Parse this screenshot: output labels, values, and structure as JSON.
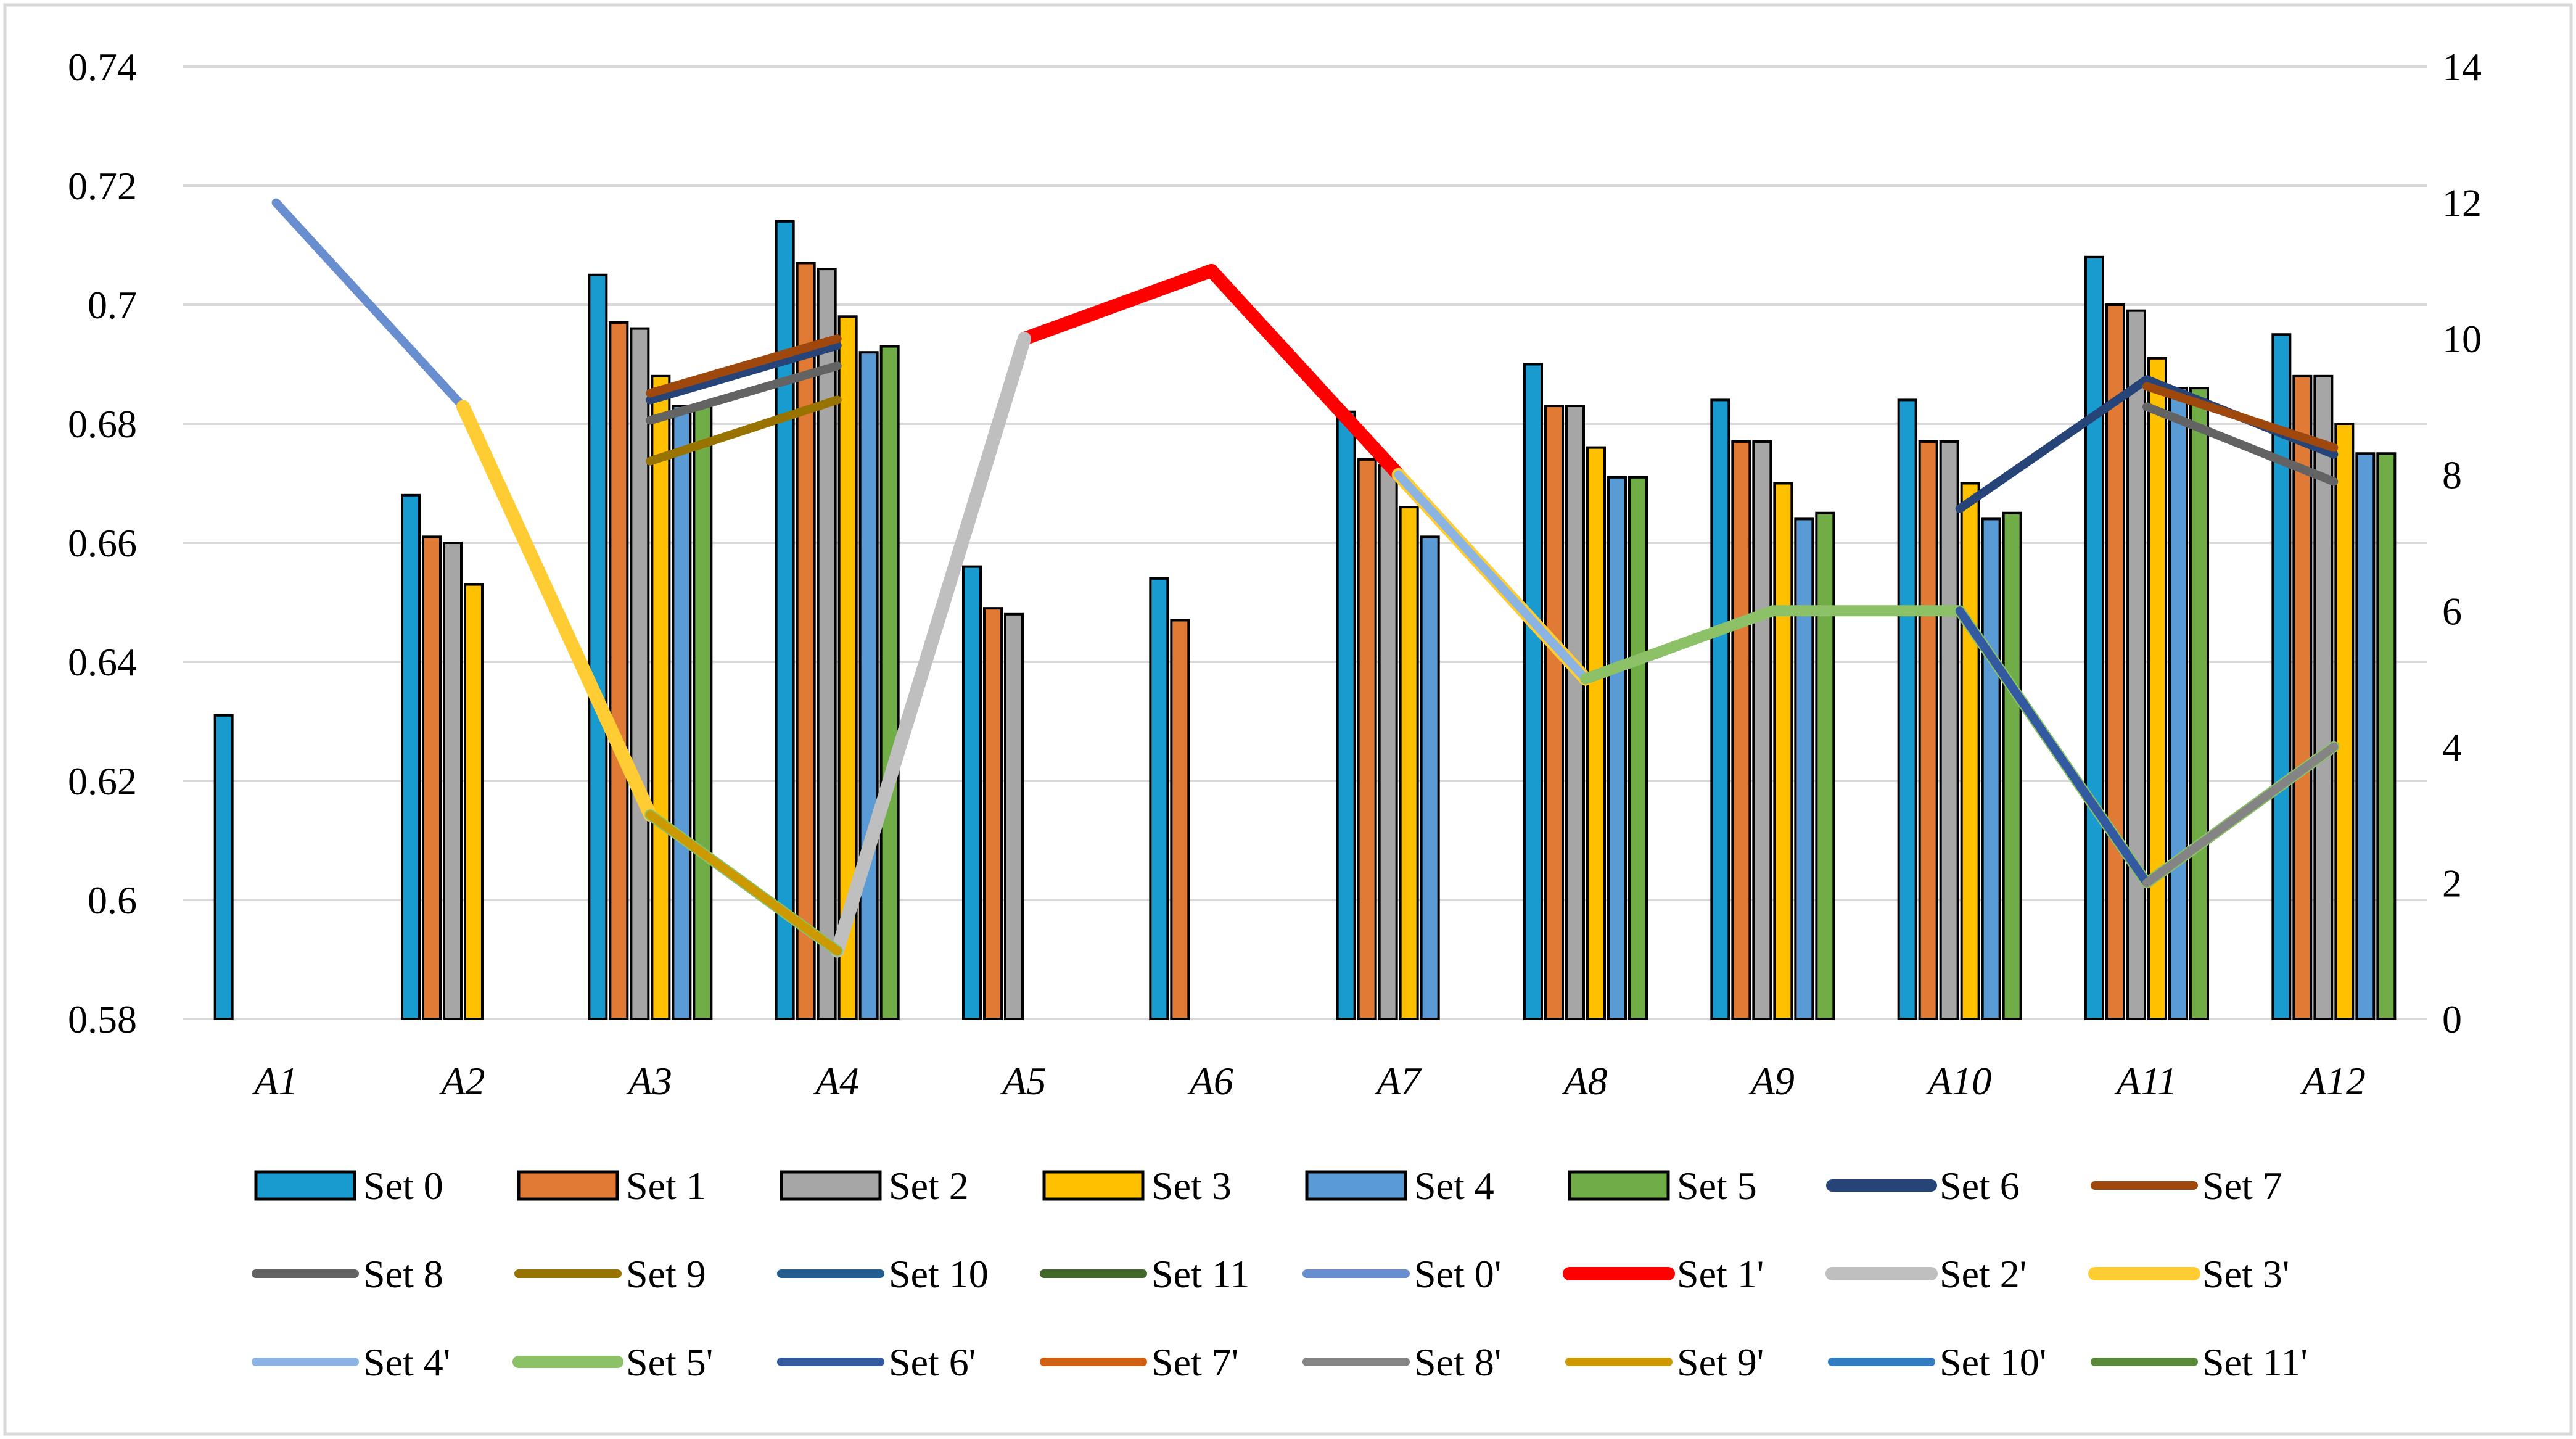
{
  "chart_data": {
    "type": "bar",
    "title": "",
    "xlabel": "",
    "ylabel": "",
    "ylim": [
      0.58,
      0.74
    ],
    "y2lim": [
      0,
      14
    ],
    "yticks": [
      "0.58",
      "0.6",
      "0.62",
      "0.64",
      "0.66",
      "0.68",
      "0.7",
      "0.72",
      "0.74"
    ],
    "y2ticks": [
      "0",
      "2",
      "4",
      "6",
      "8",
      "10",
      "12",
      "14"
    ],
    "legend_position": "bottom",
    "categories": [
      "A1",
      "A2",
      "A3",
      "A4",
      "A5",
      "A6",
      "A7",
      "A8",
      "A9",
      "A10",
      "A11",
      "A12"
    ],
    "bar_series": [
      {
        "name": "Set 0",
        "color": "#1a9bd0",
        "values": [
          0.631,
          0.668,
          0.705,
          0.714,
          0.656,
          0.654,
          0.682,
          0.69,
          0.684,
          0.684,
          0.708,
          0.695
        ]
      },
      {
        "name": "Set 1",
        "color": "#e07a35",
        "values": [
          null,
          0.661,
          0.697,
          0.707,
          0.649,
          0.647,
          0.674,
          0.683,
          0.677,
          0.677,
          0.7,
          0.688
        ]
      },
      {
        "name": "Set 2",
        "color": "#a6a6a6",
        "values": [
          null,
          0.66,
          0.696,
          0.706,
          0.648,
          null,
          0.673,
          0.683,
          0.677,
          0.677,
          0.699,
          0.688
        ]
      },
      {
        "name": "Set 3",
        "color": "#ffc000",
        "values": [
          null,
          0.653,
          0.688,
          0.698,
          null,
          null,
          0.666,
          0.676,
          0.67,
          0.67,
          0.691,
          0.68
        ]
      },
      {
        "name": "Set 4",
        "color": "#5b9bd5",
        "values": [
          null,
          null,
          0.683,
          0.692,
          null,
          null,
          0.661,
          0.671,
          0.664,
          0.664,
          0.686,
          0.675
        ]
      },
      {
        "name": "Set 5",
        "color": "#70ad47",
        "values": [
          null,
          null,
          0.683,
          0.693,
          null,
          null,
          null,
          0.671,
          0.665,
          0.665,
          0.686,
          0.675
        ]
      }
    ],
    "line_series": [
      {
        "name": "Set 6",
        "color": "#264478",
        "values": [
          null,
          null,
          9.1,
          9.9,
          null,
          null,
          null,
          null,
          null,
          7.5,
          9.4,
          8.3
        ]
      },
      {
        "name": "Set 7",
        "color": "#9e480e",
        "values": [
          null,
          null,
          9.2,
          10.0,
          null,
          null,
          null,
          null,
          null,
          null,
          9.3,
          8.4
        ]
      },
      {
        "name": "Set 8",
        "color": "#636363",
        "values": [
          null,
          null,
          8.8,
          9.6,
          null,
          null,
          null,
          null,
          null,
          null,
          9.0,
          7.9
        ]
      },
      {
        "name": "Set 9",
        "color": "#997300",
        "values": [
          null,
          null,
          8.2,
          9.1,
          null,
          null,
          null,
          null,
          null,
          null,
          null,
          null
        ]
      },
      {
        "name": "Set 10",
        "color": "#255e91",
        "values": [
          null,
          null,
          null,
          null,
          null,
          null,
          null,
          null,
          null,
          null,
          null,
          null
        ]
      },
      {
        "name": "Set 11",
        "color": "#43682b",
        "values": [
          null,
          null,
          null,
          null,
          null,
          null,
          null,
          null,
          null,
          null,
          null,
          null
        ]
      },
      {
        "name": "Set 0'",
        "color": "#698ed0",
        "values": [
          12.0,
          9.0,
          null,
          null,
          null,
          null,
          null,
          null,
          null,
          null,
          null,
          null
        ]
      },
      {
        "name": "Set 1'",
        "color": "#ff0000",
        "values": [
          null,
          null,
          null,
          null,
          10.0,
          11.0,
          8.0,
          null,
          null,
          null,
          null,
          null
        ]
      },
      {
        "name": "Set 2'",
        "color": "#bfbfbf",
        "values": [
          null,
          null,
          null,
          1.0,
          10.0,
          null,
          null,
          null,
          null,
          null,
          null,
          null
        ]
      },
      {
        "name": "Set 3'",
        "color": "#ffcd33",
        "values": [
          null,
          9.0,
          3.0,
          null,
          null,
          null,
          8.0,
          5.0,
          null,
          null,
          null,
          null
        ]
      },
      {
        "name": "Set 4'",
        "color": "#8cb4e2",
        "values": [
          null,
          null,
          null,
          null,
          null,
          null,
          8.0,
          5.0,
          null,
          null,
          null,
          null
        ]
      },
      {
        "name": "Set 5'",
        "color": "#8cc168",
        "values": [
          null,
          null,
          3.0,
          1.0,
          null,
          null,
          null,
          5.0,
          6.0,
          6.0,
          2.0,
          4.0
        ]
      },
      {
        "name": "Set 6'",
        "color": "#335aa1",
        "values": [
          null,
          null,
          null,
          null,
          null,
          null,
          null,
          null,
          null,
          6.0,
          2.0,
          null
        ]
      },
      {
        "name": "Set 7'",
        "color": "#d26012",
        "values": [
          null,
          null,
          null,
          null,
          null,
          null,
          null,
          null,
          null,
          null,
          null,
          null
        ]
      },
      {
        "name": "Set 8'",
        "color": "#848484",
        "values": [
          null,
          null,
          null,
          null,
          null,
          null,
          null,
          null,
          null,
          null,
          2.0,
          4.0
        ]
      },
      {
        "name": "Set 9'",
        "color": "#cc9a00",
        "values": [
          null,
          null,
          3.0,
          1.0,
          null,
          null,
          null,
          null,
          null,
          null,
          null,
          null
        ]
      },
      {
        "name": "Set 10'",
        "color": "#327dc2",
        "values": [
          null,
          null,
          null,
          null,
          null,
          null,
          null,
          null,
          null,
          null,
          null,
          null
        ]
      },
      {
        "name": "Set 11'",
        "color": "#5a8a39",
        "values": [
          null,
          null,
          null,
          null,
          null,
          null,
          null,
          null,
          null,
          null,
          null,
          null
        ]
      }
    ],
    "legend_order": [
      "Set 0",
      "Set 1",
      "Set 2",
      "Set 3",
      "Set 4",
      "Set 5",
      "Set 6",
      "Set 7",
      "Set 8",
      "Set 9",
      "Set 10",
      "Set 11",
      "Set 0'",
      "Set 1'",
      "Set 2'",
      "Set 3'",
      "Set 4'",
      "Set 5'",
      "Set 6'",
      "Set 7'",
      "Set 8'",
      "Set 9'",
      "Set 10'",
      "Set 11'"
    ]
  }
}
